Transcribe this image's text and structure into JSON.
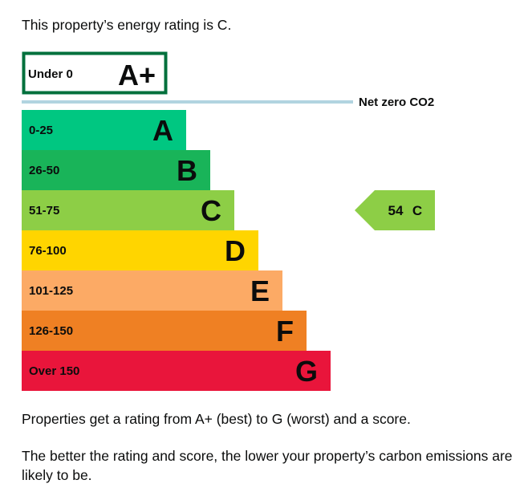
{
  "intro": "This property’s energy rating is C.",
  "chart_data": {
    "type": "bar",
    "categories": [
      "A+",
      "A",
      "B",
      "C",
      "D",
      "E",
      "F",
      "G"
    ],
    "score_ranges": [
      "Under 0",
      "0-25",
      "26-50",
      "51-75",
      "76-100",
      "101-125",
      "126-150",
      "Over 150"
    ],
    "colors": [
      "#00703c",
      "#00c781",
      "#19b459",
      "#8dce46",
      "#ffd500",
      "#fcaa65",
      "#ef8023",
      "#e9153b"
    ],
    "net_zero_label": "Net zero CO2",
    "net_zero_color": "#b1d4e0",
    "current_rating": {
      "score": "54",
      "letter": "C",
      "band_index": 3,
      "color": "#8dce46"
    }
  },
  "notes": [
    "Properties get a rating from A+ (best) to G (worst) and a score.",
    "The better the rating and score, the lower your property’s carbon emissions are likely to be."
  ]
}
